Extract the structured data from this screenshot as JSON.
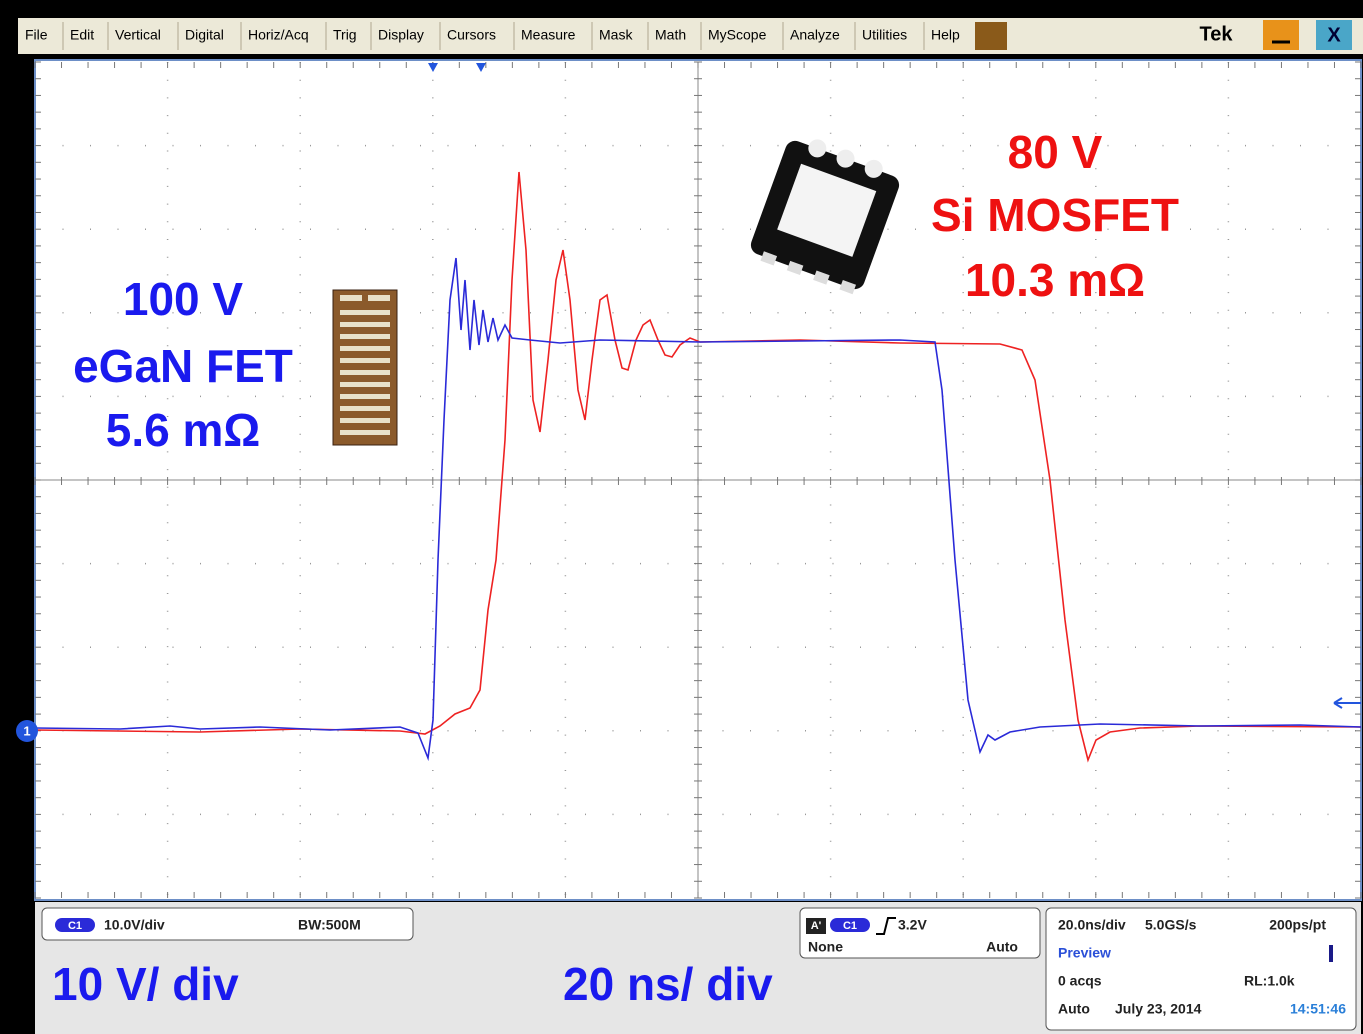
{
  "menu": [
    "File",
    "Edit",
    "Vertical",
    "Digital",
    "Horiz/Acq",
    "Trig",
    "Display",
    "Cursors",
    "Measure",
    "Mask",
    "Math",
    "MyScope",
    "Analyze",
    "Utilities",
    "Help"
  ],
  "brand": "Tek",
  "window_close": "X",
  "channel_marker": "1",
  "labels": {
    "egan": [
      "100 V",
      "eGaN FET",
      "5.6 mΩ"
    ],
    "mosfet": [
      "80 V",
      "Si MOSFET",
      "10.3 mΩ"
    ]
  },
  "vertical": {
    "channel": "C1",
    "scale": "10.0V/div",
    "bandwidth": "BW:500M"
  },
  "trigger": {
    "source": "A'",
    "channel": "C1",
    "level": "3.2V",
    "coupling": "None",
    "mode": "Auto"
  },
  "horizontal": {
    "scale": "20.0ns/div",
    "rate": "5.0GS/s",
    "resolution": "200ps/pt",
    "state": "Preview",
    "acqs": "0 acqs",
    "record": "RL:1.0k",
    "mode": "Auto",
    "date": "July 23, 2014",
    "time": "14:51:46"
  },
  "captions": {
    "vertical": "10 V/ div",
    "horizontal": "20 ns/ div"
  }
}
